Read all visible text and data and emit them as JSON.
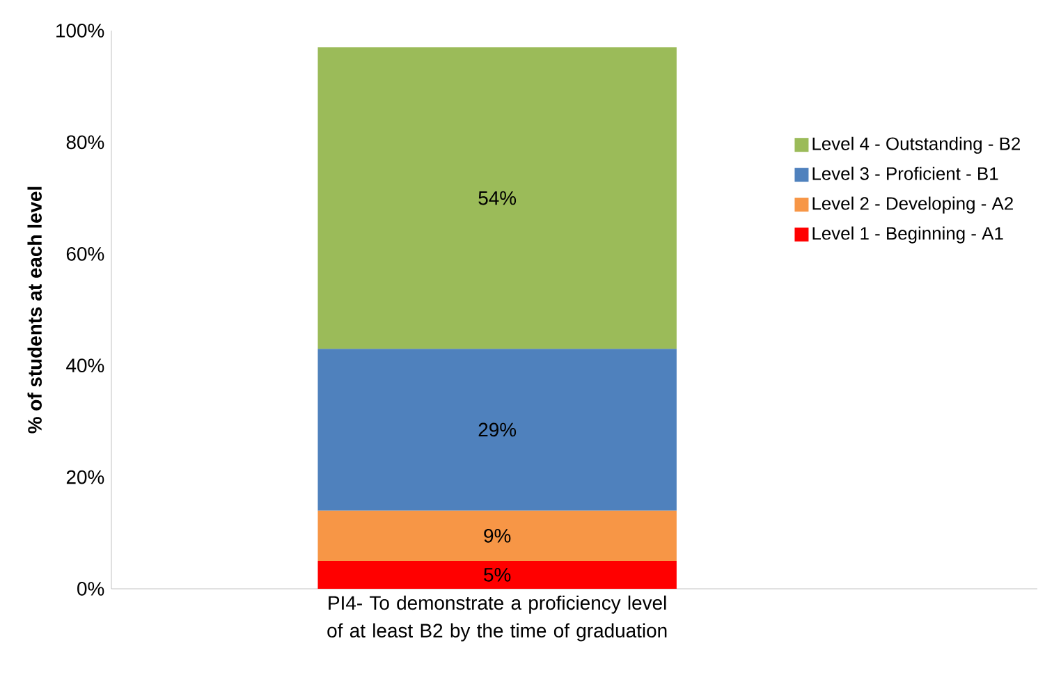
{
  "chart_data": {
    "type": "bar",
    "stacked": true,
    "ylabel": "% of students at each level",
    "categories": [
      "PI4- To demonstrate a proficiency level of at least B2 by the time of graduation"
    ],
    "series": [
      {
        "name": "Level 1 - Beginning - A1",
        "color": "#ff0000",
        "values": [
          5
        ],
        "value_labels": [
          "5%"
        ]
      },
      {
        "name": "Level 2 - Developing - A2",
        "color": "#f79646",
        "values": [
          9
        ],
        "value_labels": [
          "9%"
        ]
      },
      {
        "name": "Level 3 - Proficient - B1",
        "color": "#4f81bd",
        "values": [
          29
        ],
        "value_labels": [
          "29%"
        ]
      },
      {
        "name": "Level 4 - Outstanding - B2",
        "color": "#9bbb59",
        "values": [
          54
        ],
        "value_labels": [
          "54%"
        ]
      }
    ],
    "ylim": [
      0,
      100
    ],
    "yticks": [
      {
        "value": 0,
        "label": "0%"
      },
      {
        "value": 20,
        "label": "20%"
      },
      {
        "value": 40,
        "label": "40%"
      },
      {
        "value": 60,
        "label": "60%"
      },
      {
        "value": 80,
        "label": "80%"
      },
      {
        "value": 100,
        "label": "100%"
      }
    ],
    "legend": "right",
    "grid": false
  }
}
